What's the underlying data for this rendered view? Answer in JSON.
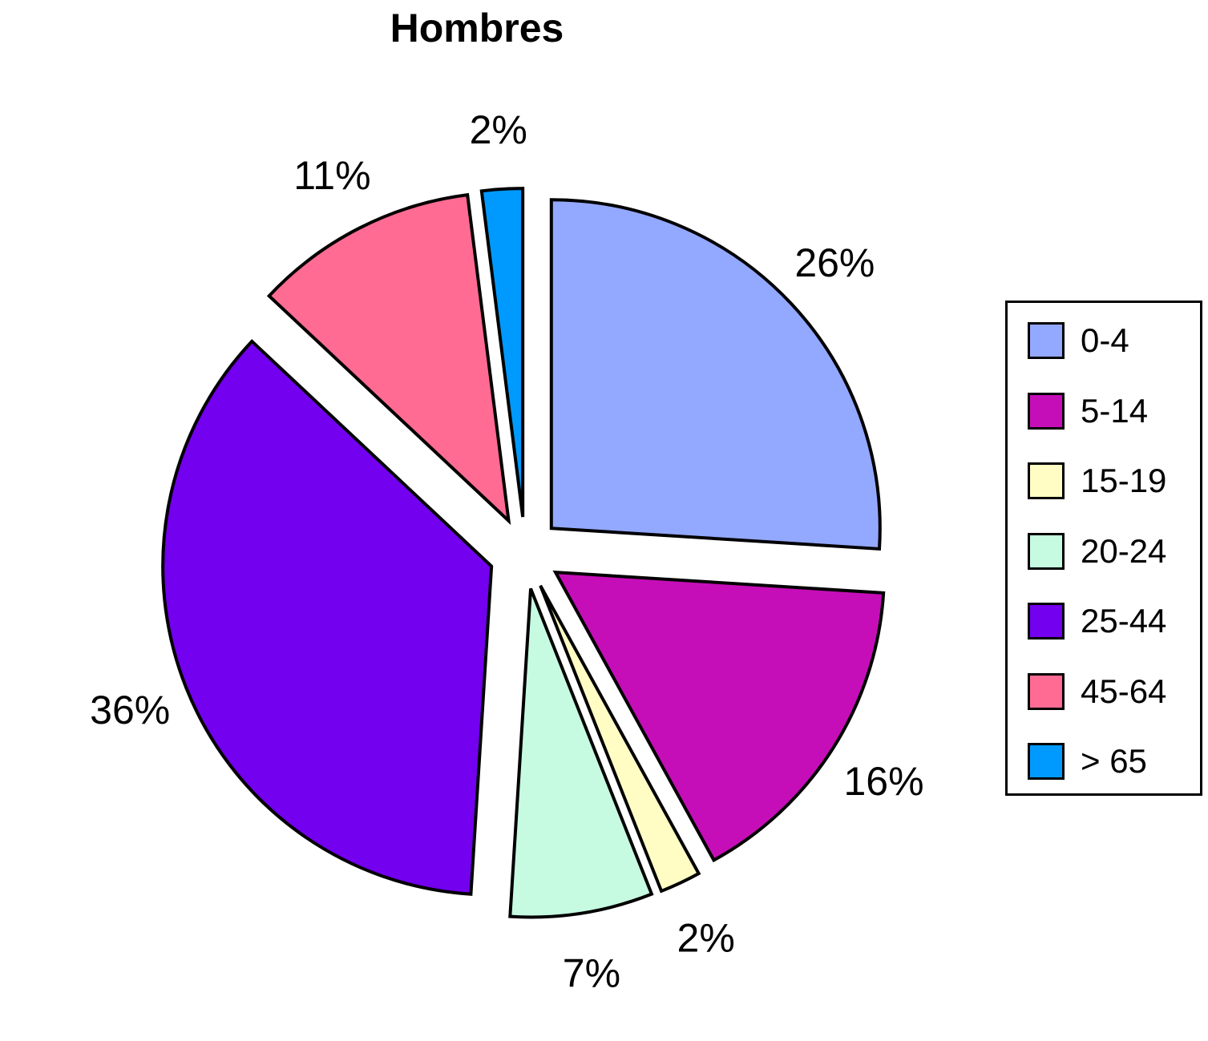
{
  "chart_data": {
    "type": "pie",
    "title": "Hombres",
    "exploded": true,
    "legend_position": "right",
    "categories": [
      "0-4",
      "5-14",
      "15-19",
      "20-24",
      "25-44",
      "45-64",
      "> 65"
    ],
    "values": [
      26,
      16,
      2,
      7,
      36,
      11,
      2
    ],
    "labels": [
      "26%",
      "16%",
      "2%",
      "7%",
      "36%",
      "11%",
      "2%"
    ],
    "colors": [
      "#93A8FF",
      "#C60EB8",
      "#FFFDC4",
      "#C6FBE2",
      "#7300EE",
      "#FF6B93",
      "#009AFF"
    ]
  }
}
